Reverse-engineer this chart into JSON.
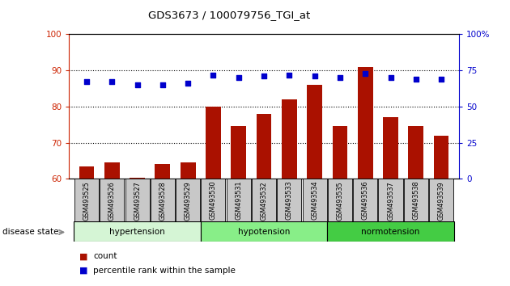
{
  "title": "GDS3673 / 100079756_TGI_at",
  "samples": [
    "GSM493525",
    "GSM493526",
    "GSM493527",
    "GSM493528",
    "GSM493529",
    "GSM493530",
    "GSM493531",
    "GSM493532",
    "GSM493533",
    "GSM493534",
    "GSM493535",
    "GSM493536",
    "GSM493537",
    "GSM493538",
    "GSM493539"
  ],
  "count_values": [
    63.5,
    64.5,
    60.2,
    64.0,
    64.5,
    80.0,
    74.5,
    78.0,
    82.0,
    86.0,
    74.5,
    91.0,
    77.0,
    74.5,
    72.0
  ],
  "percentile_right": [
    67,
    67,
    65,
    65,
    66,
    72,
    70,
    71,
    72,
    71,
    70,
    73,
    70,
    69,
    69
  ],
  "ylim_left": [
    60,
    100
  ],
  "ylim_right": [
    0,
    100
  ],
  "yticks_left": [
    60,
    70,
    80,
    90,
    100
  ],
  "yticks_right": [
    0,
    25,
    50,
    75,
    100
  ],
  "ytick_right_labels": [
    "0",
    "25",
    "50",
    "75",
    "100%"
  ],
  "groups": [
    {
      "label": "hypertension",
      "start": 0,
      "end": 5,
      "color": "#d5f5d5"
    },
    {
      "label": "hypotension",
      "start": 5,
      "end": 10,
      "color": "#88ee88"
    },
    {
      "label": "normotension",
      "start": 10,
      "end": 15,
      "color": "#44cc44"
    }
  ],
  "bar_color": "#aa1100",
  "dot_color": "#0000cc",
  "left_axis_color": "#cc2200",
  "right_axis_color": "#0000cc",
  "tick_bg_color": "#c8c8c8",
  "legend_count_color": "#aa1100",
  "legend_pct_color": "#0000cc",
  "grid_yticks": [
    70,
    80,
    90
  ]
}
